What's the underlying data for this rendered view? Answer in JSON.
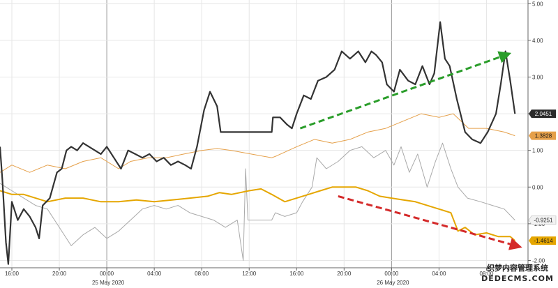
{
  "chart_data": {
    "type": "line",
    "x_unit": "hours since 15:00 on 24 May 2020 (local chart time)",
    "date_labels": [
      {
        "text": "25 May 2020",
        "x": 9
      },
      {
        "text": "26 May 2020",
        "x": 33
      }
    ],
    "x_ticks": [
      {
        "label": "16:00",
        "x": 1
      },
      {
        "label": "20:00",
        "x": 5
      },
      {
        "label": "00:00",
        "x": 9
      },
      {
        "label": "04:00",
        "x": 13
      },
      {
        "label": "08:00",
        "x": 17
      },
      {
        "label": "12:00",
        "x": 21
      },
      {
        "label": "16:00",
        "x": 25
      },
      {
        "label": "20:00",
        "x": 29
      },
      {
        "label": "00:00",
        "x": 33
      },
      {
        "label": "04:00",
        "x": 37
      },
      {
        "label": "08:00",
        "x": 41
      }
    ],
    "xlim": [
      0,
      44.5
    ],
    "ylim": [
      -2.2,
      5.1
    ],
    "y_ticks": [
      "5.00",
      "4.00",
      "3.00",
      "2.00",
      "1.00",
      "0.00",
      "-1.00",
      "-2.00"
    ],
    "grid": true,
    "series": [
      {
        "color": "#333333",
        "last_value_label": "2.0451",
        "label_style": "dark",
        "points": [
          [
            0,
            1.1
          ],
          [
            0.2,
            0.2
          ],
          [
            0.5,
            -1.5
          ],
          [
            0.7,
            -2.1
          ],
          [
            1,
            -0.4
          ],
          [
            1.5,
            -0.9
          ],
          [
            2,
            -0.6
          ],
          [
            2.5,
            -0.8
          ],
          [
            3,
            -1.1
          ],
          [
            3.3,
            -1.4
          ],
          [
            3.6,
            -0.5
          ],
          [
            4.2,
            -0.3
          ],
          [
            4.8,
            0.4
          ],
          [
            5.2,
            0.5
          ],
          [
            5.6,
            1.0
          ],
          [
            6,
            1.1
          ],
          [
            6.5,
            1.0
          ],
          [
            7,
            1.2
          ],
          [
            7.5,
            1.1
          ],
          [
            8,
            1.0
          ],
          [
            8.5,
            0.9
          ],
          [
            9,
            1.1
          ],
          [
            9.6,
            0.8
          ],
          [
            10.2,
            0.5
          ],
          [
            10.8,
            1.0
          ],
          [
            11.4,
            0.9
          ],
          [
            12,
            0.8
          ],
          [
            12.6,
            0.9
          ],
          [
            13.2,
            0.7
          ],
          [
            13.8,
            0.8
          ],
          [
            14.4,
            0.6
          ],
          [
            15,
            0.7
          ],
          [
            15.6,
            0.6
          ],
          [
            16.1,
            0.5
          ],
          [
            16.6,
            1.1
          ],
          [
            17.2,
            2.1
          ],
          [
            17.7,
            2.6
          ],
          [
            18.3,
            2.2
          ],
          [
            18.6,
            1.5
          ],
          [
            19,
            1.5
          ],
          [
            22.9,
            1.5
          ],
          [
            23,
            1.9
          ],
          [
            23.6,
            1.9
          ],
          [
            24.2,
            1.7
          ],
          [
            24.6,
            1.6
          ],
          [
            25,
            2.0
          ],
          [
            25.6,
            2.5
          ],
          [
            26.2,
            2.4
          ],
          [
            26.8,
            2.9
          ],
          [
            27.5,
            3.0
          ],
          [
            28.2,
            3.2
          ],
          [
            28.8,
            3.7
          ],
          [
            29.5,
            3.5
          ],
          [
            30.2,
            3.7
          ],
          [
            30.8,
            3.4
          ],
          [
            31.3,
            3.7
          ],
          [
            31.7,
            3.6
          ],
          [
            32.2,
            3.4
          ],
          [
            32.6,
            2.8
          ],
          [
            33.2,
            2.6
          ],
          [
            33.7,
            3.2
          ],
          [
            34.4,
            2.9
          ],
          [
            35,
            2.8
          ],
          [
            35.6,
            3.3
          ],
          [
            36.2,
            2.8
          ],
          [
            36.6,
            3.1
          ],
          [
            37.1,
            4.5
          ],
          [
            37.5,
            3.5
          ],
          [
            37.9,
            3.3
          ],
          [
            38.5,
            2.4
          ],
          [
            39.2,
            1.5
          ],
          [
            39.8,
            1.3
          ],
          [
            40.5,
            1.2
          ],
          [
            41.1,
            1.5
          ],
          [
            41.8,
            2.0
          ],
          [
            42.2,
            2.8
          ],
          [
            42.6,
            3.7
          ],
          [
            43,
            2.9
          ],
          [
            43.4,
            2.0
          ]
        ]
      },
      {
        "color": "#e5a04a",
        "last_value_label": "1.3828",
        "label_style": "orange",
        "points": [
          [
            0,
            0.4
          ],
          [
            1,
            0.6
          ],
          [
            2.5,
            0.4
          ],
          [
            4,
            0.6
          ],
          [
            5.5,
            0.5
          ],
          [
            7,
            0.7
          ],
          [
            8.5,
            0.8
          ],
          [
            10,
            0.5
          ],
          [
            11,
            0.7
          ],
          [
            12.5,
            0.8
          ],
          [
            14,
            0.8
          ],
          [
            15.5,
            0.9
          ],
          [
            17,
            1.0
          ],
          [
            18.3,
            1.05
          ],
          [
            19.5,
            1.0
          ],
          [
            22.9,
            0.8
          ],
          [
            23.3,
            0.85
          ],
          [
            25,
            1.1
          ],
          [
            26.5,
            1.3
          ],
          [
            28,
            1.2
          ],
          [
            29.5,
            1.3
          ],
          [
            31,
            1.5
          ],
          [
            32.5,
            1.6
          ],
          [
            34,
            1.8
          ],
          [
            35.5,
            2.0
          ],
          [
            37,
            1.9
          ],
          [
            38.2,
            2.0
          ],
          [
            39.5,
            1.6
          ],
          [
            41,
            1.6
          ],
          [
            42.5,
            1.5
          ],
          [
            43.4,
            1.4
          ]
        ]
      },
      {
        "color": "#e5a600",
        "last_value_label": "-1.4614",
        "label_style": "orange",
        "points": [
          [
            0,
            -0.1
          ],
          [
            1,
            -0.2
          ],
          [
            2,
            -0.2
          ],
          [
            3,
            -0.3
          ],
          [
            4,
            -0.4
          ],
          [
            5.5,
            -0.3
          ],
          [
            7,
            -0.3
          ],
          [
            8.5,
            -0.4
          ],
          [
            10,
            -0.4
          ],
          [
            11.5,
            -0.35
          ],
          [
            13,
            -0.4
          ],
          [
            14.5,
            -0.35
          ],
          [
            16,
            -0.3
          ],
          [
            17.5,
            -0.25
          ],
          [
            18.5,
            -0.15
          ],
          [
            19.5,
            -0.2
          ],
          [
            21,
            -0.1
          ],
          [
            22,
            -0.05
          ],
          [
            22.9,
            -0.2
          ],
          [
            24,
            -0.4
          ],
          [
            25,
            -0.3
          ],
          [
            26,
            -0.2
          ],
          [
            27,
            -0.1
          ],
          [
            28,
            0.0
          ],
          [
            29,
            0.0
          ],
          [
            30,
            0.0
          ],
          [
            31,
            -0.1
          ],
          [
            32,
            -0.25
          ],
          [
            33,
            -0.3
          ],
          [
            34,
            -0.35
          ],
          [
            35,
            -0.4
          ],
          [
            36,
            -0.5
          ],
          [
            37,
            -0.6
          ],
          [
            38,
            -0.7
          ],
          [
            38.6,
            -1.2
          ],
          [
            39.2,
            -1.1
          ],
          [
            40,
            -1.3
          ],
          [
            41,
            -1.25
          ],
          [
            42,
            -1.35
          ],
          [
            43,
            -1.35
          ],
          [
            43.4,
            -1.46
          ]
        ]
      },
      {
        "color": "#a9a9a9",
        "last_value_label": "-0.9251",
        "label_style": "light",
        "points": [
          [
            0,
            0.1
          ],
          [
            1,
            -0.1
          ],
          [
            2,
            -0.3
          ],
          [
            3,
            -0.5
          ],
          [
            4,
            -0.6
          ],
          [
            5,
            -1.1
          ],
          [
            6,
            -1.6
          ],
          [
            7,
            -1.3
          ],
          [
            8,
            -1.1
          ],
          [
            9,
            -1.4
          ],
          [
            10,
            -1.2
          ],
          [
            11,
            -0.9
          ],
          [
            12,
            -0.6
          ],
          [
            13,
            -0.5
          ],
          [
            14,
            -0.6
          ],
          [
            15,
            -0.5
          ],
          [
            16,
            -0.7
          ],
          [
            17,
            -0.8
          ],
          [
            18,
            -0.9
          ],
          [
            19,
            -1.1
          ],
          [
            20,
            -0.9
          ],
          [
            20.5,
            -2.0
          ],
          [
            20.7,
            0.5
          ],
          [
            20.9,
            -0.9
          ],
          [
            22.9,
            -0.9
          ],
          [
            23.2,
            -0.7
          ],
          [
            24,
            -0.8
          ],
          [
            25,
            -0.7
          ],
          [
            25.5,
            -0.4
          ],
          [
            26.3,
            0.0
          ],
          [
            26.7,
            0.8
          ],
          [
            27.5,
            0.5
          ],
          [
            28.5,
            0.7
          ],
          [
            29.5,
            1.0
          ],
          [
            30.5,
            1.1
          ],
          [
            31.5,
            0.8
          ],
          [
            32.5,
            1.0
          ],
          [
            33.2,
            0.6
          ],
          [
            33.8,
            1.1
          ],
          [
            34.5,
            0.4
          ],
          [
            35.2,
            0.9
          ],
          [
            36,
            0.0
          ],
          [
            36.7,
            0.7
          ],
          [
            37.3,
            1.2
          ],
          [
            38,
            0.5
          ],
          [
            38.6,
            0.0
          ],
          [
            39.4,
            -0.3
          ],
          [
            40.5,
            -0.4
          ],
          [
            41.5,
            -0.5
          ],
          [
            42.5,
            -0.6
          ],
          [
            43.4,
            -0.9
          ]
        ]
      }
    ],
    "annotations": [
      {
        "type": "arrow",
        "color": "#2a9d2a",
        "from": [
          25.3,
          1.6
        ],
        "to": [
          42.6,
          3.6
        ]
      },
      {
        "type": "arrow",
        "color": "#d42a2a",
        "from": [
          28.5,
          -0.25
        ],
        "to": [
          43.5,
          -1.6
        ]
      }
    ]
  },
  "watermark": {
    "line1": "织梦内容管理系统",
    "line2": "DEDECMS.COM"
  }
}
